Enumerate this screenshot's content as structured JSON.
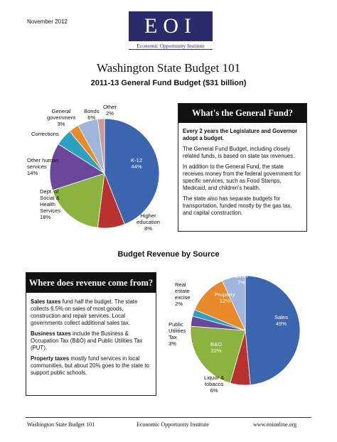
{
  "header": {
    "date": "November 2012",
    "logo_text": "EOI",
    "logo_subtitle": "Economic Opportunity Institute"
  },
  "title": "Washington State Budget 101",
  "subtitle": "2011-13 General Fund Budget ($31 billion)",
  "general_fund_box": {
    "heading": "What's the General Fund?",
    "para1": "Every 2 years the Legislature and Governor adopt a budget.",
    "para2": "The General Fund Budget, including closely related funds, is based on state tax revenues.",
    "para3": "In addition to the General Fund, the state receives money from the federal government for specific services, such as Food Stamps, Medicaid, and children's health.",
    "para4": "The state also has separate budgets for transportation, funded mostly by the gas tax, and capital construction."
  },
  "revenue_title": "Budget Revenue by Source",
  "revenue_box": {
    "heading": "Where does revenue come from?",
    "p1_bold": "Sales taxes",
    "p1_rest": " fund half the budget. The state collects 6.5% on sales of most goods, construction and repair services. Local governments collect additional sales tax.",
    "p2_bold": "Business taxes",
    "p2_rest": " include the Business & Occupation Tax (B&O) and Public Utilities Tax (PUT).",
    "p3_bold": "Property taxes",
    "p3_rest": " mostly fund services in local communities, but about 20% goes to the state to support public schools."
  },
  "footer": {
    "left": "Washington State Budget 101",
    "center": "Economic Opportunity Institute",
    "right": "www.eoionline.org"
  },
  "chart_data": [
    {
      "type": "pie",
      "title": "2011-13 General Fund Budget ($31 billion)",
      "slices": [
        {
          "label": "K-12",
          "value": 44,
          "display": "44%",
          "color": "#3b65ae"
        },
        {
          "label": "Higher education",
          "value": 8,
          "display": "8%",
          "color": "#b83330"
        },
        {
          "label": "Dept. of Social & Health Services",
          "value": 18,
          "display": "18%",
          "color": "#8cb33f"
        },
        {
          "label": "Other human services",
          "value": 14,
          "display": "14%",
          "color": "#6a4798"
        },
        {
          "label": "Corrections",
          "value": 5,
          "display": "5%",
          "color": "#2da2c0"
        },
        {
          "label": "General government",
          "value": 3,
          "display": "3%",
          "color": "#e8892a"
        },
        {
          "label": "Bonds",
          "value": 6,
          "display": "6%",
          "color": "#9fb5d9"
        },
        {
          "label": "Other",
          "value": 2,
          "display": "2%",
          "color": "#c79b9a"
        }
      ]
    },
    {
      "type": "pie",
      "title": "Budget Revenue by Source",
      "slices": [
        {
          "label": "Sales",
          "value": 49,
          "display": "49%",
          "color": "#3b65ae"
        },
        {
          "label": "Liquor & tobacco",
          "value": 6,
          "display": "6%",
          "color": "#b83330"
        },
        {
          "label": "B&O",
          "value": 22,
          "display": "22%",
          "color": "#8cb33f"
        },
        {
          "label": "Public Utilities Tax",
          "value": 3,
          "display": "3%",
          "color": "#6a4798"
        },
        {
          "label": "Real estate excise",
          "value": 2,
          "display": "2%",
          "color": "#2da2c0"
        },
        {
          "label": "Property",
          "value": 12,
          "display": "12%",
          "color": "#e8892a"
        },
        {
          "label": "Other",
          "value": 7,
          "display": "7%",
          "color": "#9fb5d9"
        }
      ]
    }
  ]
}
